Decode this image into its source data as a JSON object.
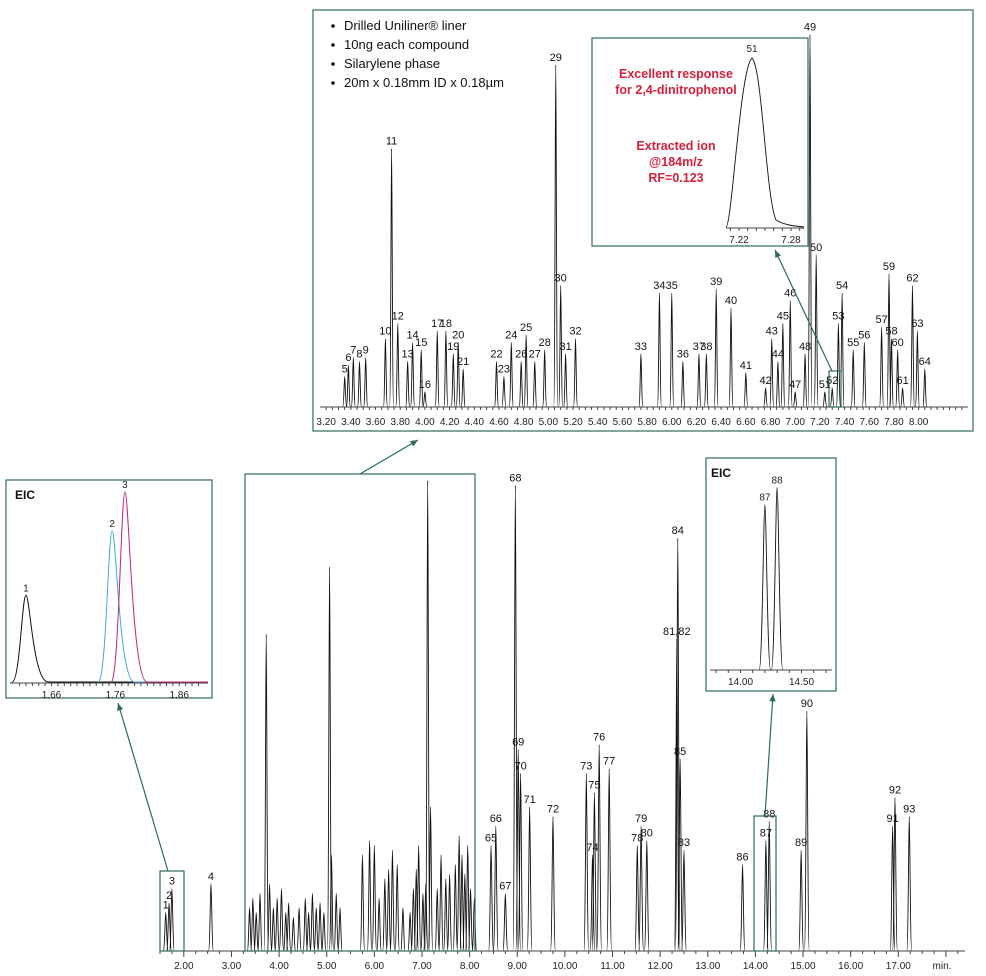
{
  "chart_data": [
    {
      "type": "line",
      "id": "main",
      "xlabel_unit": "min.",
      "xlim": [
        1.5,
        18.4
      ],
      "ylim": [
        0,
        100
      ],
      "x_ticks": [
        "2.00",
        "3.00",
        "4.00",
        "5.00",
        "6.00",
        "7.00",
        "8.00",
        "9.00",
        "10.00",
        "11.00",
        "12.00",
        "13.00",
        "14.00",
        "15.00",
        "16.00",
        "17.00"
      ],
      "peaks": [
        {
          "label": "1",
          "x": 1.62,
          "h": 8
        },
        {
          "label": "2",
          "x": 1.69,
          "h": 10
        },
        {
          "label": "3",
          "x": 1.75,
          "h": 13
        },
        {
          "label": "4",
          "x": 2.57,
          "h": 14
        },
        {
          "label": "65",
          "x": 8.45,
          "h": 22
        },
        {
          "label": "66",
          "x": 8.55,
          "h": 26
        },
        {
          "label": "67",
          "x": 8.75,
          "h": 12
        },
        {
          "label": "68",
          "x": 8.96,
          "h": 97
        },
        {
          "label": "69",
          "x": 9.02,
          "h": 42
        },
        {
          "label": "70",
          "x": 9.07,
          "h": 37
        },
        {
          "label": "71",
          "x": 9.26,
          "h": 30
        },
        {
          "label": "72",
          "x": 9.75,
          "h": 28
        },
        {
          "label": "73",
          "x": 10.45,
          "h": 37
        },
        {
          "label": "74",
          "x": 10.58,
          "h": 20
        },
        {
          "label": "75",
          "x": 10.62,
          "h": 33
        },
        {
          "label": "76",
          "x": 10.72,
          "h": 43
        },
        {
          "label": "77",
          "x": 10.93,
          "h": 38
        },
        {
          "label": "78",
          "x": 11.52,
          "h": 22
        },
        {
          "label": "79",
          "x": 11.6,
          "h": 26
        },
        {
          "label": "80",
          "x": 11.72,
          "h": 23
        },
        {
          "label": "81,82",
          "x": 12.35,
          "h": 65
        },
        {
          "label": "83",
          "x": 12.5,
          "h": 21
        },
        {
          "label": "84",
          "x": 12.37,
          "h": 86
        },
        {
          "label": "85",
          "x": 12.42,
          "h": 40
        },
        {
          "label": "86",
          "x": 13.73,
          "h": 18
        },
        {
          "label": "87",
          "x": 14.22,
          "h": 23
        },
        {
          "label": "88",
          "x": 14.29,
          "h": 27
        },
        {
          "label": "89",
          "x": 14.96,
          "h": 21
        },
        {
          "label": "90",
          "x": 15.08,
          "h": 50
        },
        {
          "label": "91",
          "x": 16.88,
          "h": 26
        },
        {
          "label": "92",
          "x": 16.93,
          "h": 32
        },
        {
          "label": "93",
          "x": 17.23,
          "h": 28
        }
      ],
      "boxed_region_peaks": [
        {
          "x": 3.38,
          "h": 9
        },
        {
          "x": 3.45,
          "h": 11
        },
        {
          "x": 3.52,
          "h": 8
        },
        {
          "x": 3.6,
          "h": 12
        },
        {
          "x": 3.73,
          "h": 66
        },
        {
          "x": 3.8,
          "h": 14
        },
        {
          "x": 3.88,
          "h": 9
        },
        {
          "x": 3.96,
          "h": 11
        },
        {
          "x": 4.05,
          "h": 13
        },
        {
          "x": 4.14,
          "h": 8
        },
        {
          "x": 4.2,
          "h": 10
        },
        {
          "x": 4.3,
          "h": 7
        },
        {
          "x": 4.42,
          "h": 9
        },
        {
          "x": 4.55,
          "h": 11
        },
        {
          "x": 4.62,
          "h": 8
        },
        {
          "x": 4.7,
          "h": 12
        },
        {
          "x": 4.78,
          "h": 9
        },
        {
          "x": 4.86,
          "h": 10
        },
        {
          "x": 4.94,
          "h": 8
        },
        {
          "x": 5.06,
          "h": 80
        },
        {
          "x": 5.1,
          "h": 20
        },
        {
          "x": 5.2,
          "h": 12
        },
        {
          "x": 5.28,
          "h": 9
        },
        {
          "x": 5.75,
          "h": 20
        },
        {
          "x": 5.9,
          "h": 23
        },
        {
          "x": 6.0,
          "h": 22
        },
        {
          "x": 6.1,
          "h": 11
        },
        {
          "x": 6.22,
          "h": 15
        },
        {
          "x": 6.3,
          "h": 17
        },
        {
          "x": 6.38,
          "h": 21
        },
        {
          "x": 6.48,
          "h": 18
        },
        {
          "x": 6.6,
          "h": 9
        },
        {
          "x": 6.75,
          "h": 8
        },
        {
          "x": 6.82,
          "h": 13
        },
        {
          "x": 6.88,
          "h": 17
        },
        {
          "x": 6.93,
          "h": 22
        },
        {
          "x": 7.02,
          "h": 12
        },
        {
          "x": 7.08,
          "h": 14
        },
        {
          "x": 7.12,
          "h": 98
        },
        {
          "x": 7.18,
          "h": 30
        },
        {
          "x": 7.32,
          "h": 13
        },
        {
          "x": 7.4,
          "h": 20
        },
        {
          "x": 7.5,
          "h": 15
        },
        {
          "x": 7.58,
          "h": 16
        },
        {
          "x": 7.7,
          "h": 18
        },
        {
          "x": 7.78,
          "h": 24
        },
        {
          "x": 7.84,
          "h": 20
        },
        {
          "x": 7.9,
          "h": 16
        },
        {
          "x": 7.96,
          "h": 22
        },
        {
          "x": 8.02,
          "h": 13
        },
        {
          "x": 8.1,
          "h": 11
        }
      ]
    },
    {
      "type": "line",
      "id": "zoom_3_8",
      "xlim": [
        3.15,
        8.4
      ],
      "ylim": [
        0,
        100
      ],
      "x_ticks": [
        "3.20",
        "3.40",
        "3.60",
        "3.80",
        "4.00",
        "4.20",
        "4.40",
        "4.60",
        "4.80",
        "5.00",
        "5.20",
        "5.40",
        "5.60",
        "5.80",
        "6.00",
        "6.20",
        "6.40",
        "6.60",
        "6.80",
        "7.00",
        "7.20",
        "7.40",
        "7.60",
        "7.80",
        "8.00"
      ],
      "annotations": [
        "Drilled Uniliner® liner",
        "10ng each compound",
        "Silarylene phase",
        "20m x 0.18mm ID x 0.18µm"
      ],
      "peaks": [
        {
          "label": "5",
          "x": 3.35,
          "h": 8
        },
        {
          "label": "6",
          "x": 3.38,
          "h": 11
        },
        {
          "label": "7",
          "x": 3.42,
          "h": 13
        },
        {
          "label": "8",
          "x": 3.47,
          "h": 12
        },
        {
          "label": "9",
          "x": 3.52,
          "h": 13
        },
        {
          "label": "10",
          "x": 3.68,
          "h": 18
        },
        {
          "label": "11",
          "x": 3.73,
          "h": 68
        },
        {
          "label": "12",
          "x": 3.78,
          "h": 22
        },
        {
          "label": "13",
          "x": 3.86,
          "h": 12
        },
        {
          "label": "14",
          "x": 3.9,
          "h": 17
        },
        {
          "label": "15",
          "x": 3.97,
          "h": 15
        },
        {
          "label": "16",
          "x": 4.0,
          "h": 4
        },
        {
          "label": "17",
          "x": 4.1,
          "h": 20
        },
        {
          "label": "18",
          "x": 4.17,
          "h": 20
        },
        {
          "label": "19",
          "x": 4.23,
          "h": 14
        },
        {
          "label": "20",
          "x": 4.27,
          "h": 17
        },
        {
          "label": "21",
          "x": 4.31,
          "h": 10
        },
        {
          "label": "22",
          "x": 4.58,
          "h": 12
        },
        {
          "label": "23",
          "x": 4.64,
          "h": 8
        },
        {
          "label": "24",
          "x": 4.7,
          "h": 17
        },
        {
          "label": "25",
          "x": 4.82,
          "h": 19
        },
        {
          "label": "26",
          "x": 4.78,
          "h": 12
        },
        {
          "label": "27",
          "x": 4.89,
          "h": 12
        },
        {
          "label": "28",
          "x": 4.97,
          "h": 15
        },
        {
          "label": "29",
          "x": 5.06,
          "h": 90
        },
        {
          "label": "30",
          "x": 5.1,
          "h": 32
        },
        {
          "label": "31",
          "x": 5.14,
          "h": 14
        },
        {
          "label": "32",
          "x": 5.22,
          "h": 18
        },
        {
          "label": "33",
          "x": 5.75,
          "h": 14
        },
        {
          "label": "34",
          "x": 5.9,
          "h": 30
        },
        {
          "label": "35",
          "x": 6.0,
          "h": 30
        },
        {
          "label": "36",
          "x": 6.09,
          "h": 12
        },
        {
          "label": "37",
          "x": 6.22,
          "h": 14
        },
        {
          "label": "38",
          "x": 6.28,
          "h": 14
        },
        {
          "label": "39",
          "x": 6.36,
          "h": 31
        },
        {
          "label": "40",
          "x": 6.48,
          "h": 26
        },
        {
          "label": "41",
          "x": 6.6,
          "h": 9
        },
        {
          "label": "42",
          "x": 6.76,
          "h": 5
        },
        {
          "label": "43",
          "x": 6.81,
          "h": 18
        },
        {
          "label": "44",
          "x": 6.86,
          "h": 12
        },
        {
          "label": "45",
          "x": 6.9,
          "h": 22
        },
        {
          "label": "46",
          "x": 6.96,
          "h": 28
        },
        {
          "label": "47",
          "x": 7.0,
          "h": 4
        },
        {
          "label": "48",
          "x": 7.08,
          "h": 14
        },
        {
          "label": "49",
          "x": 7.12,
          "h": 98
        },
        {
          "label": "50",
          "x": 7.17,
          "h": 40
        },
        {
          "label": "51",
          "x": 7.24,
          "h": 4
        },
        {
          "label": "52",
          "x": 7.3,
          "h": 5
        },
        {
          "label": "53",
          "x": 7.35,
          "h": 22
        },
        {
          "label": "54",
          "x": 7.38,
          "h": 30
        },
        {
          "label": "55",
          "x": 7.47,
          "h": 15
        },
        {
          "label": "56",
          "x": 7.56,
          "h": 17
        },
        {
          "label": "57",
          "x": 7.7,
          "h": 21
        },
        {
          "label": "58",
          "x": 7.78,
          "h": 18
        },
        {
          "label": "59",
          "x": 7.76,
          "h": 35
        },
        {
          "label": "60",
          "x": 7.83,
          "h": 15
        },
        {
          "label": "61",
          "x": 7.87,
          "h": 5
        },
        {
          "label": "62",
          "x": 7.95,
          "h": 32
        },
        {
          "label": "63",
          "x": 7.99,
          "h": 20
        },
        {
          "label": "64",
          "x": 8.05,
          "h": 10
        }
      ]
    },
    {
      "type": "line",
      "id": "inset_51",
      "title": "Excellent response for 2,4-dinitrophenol",
      "note_lines": [
        "Extracted ion",
        "@184m/z",
        "RF=0.123"
      ],
      "x_ticks": [
        "7.22",
        "7.28"
      ],
      "peaks": [
        {
          "label": "51",
          "x": 7.235,
          "h": 100
        }
      ]
    },
    {
      "type": "line",
      "id": "eic_1_3",
      "title": "EIC",
      "x_ticks": [
        "1.66",
        "1.76",
        "1.86"
      ],
      "series": [
        {
          "name": "1",
          "color": "#111111",
          "x": 1.62,
          "h": 45
        },
        {
          "name": "2",
          "color": "#3fa7e0",
          "x": 1.755,
          "h": 78
        },
        {
          "name": "3",
          "color": "#c0207a",
          "x": 1.775,
          "h": 98
        }
      ]
    },
    {
      "type": "line",
      "id": "eic_87_88",
      "title": "EIC",
      "x_ticks": [
        "14.00",
        "14.50"
      ],
      "peaks": [
        {
          "label": "87",
          "x": 14.2,
          "h": 87
        },
        {
          "label": "88",
          "x": 14.3,
          "h": 96
        }
      ]
    }
  ]
}
